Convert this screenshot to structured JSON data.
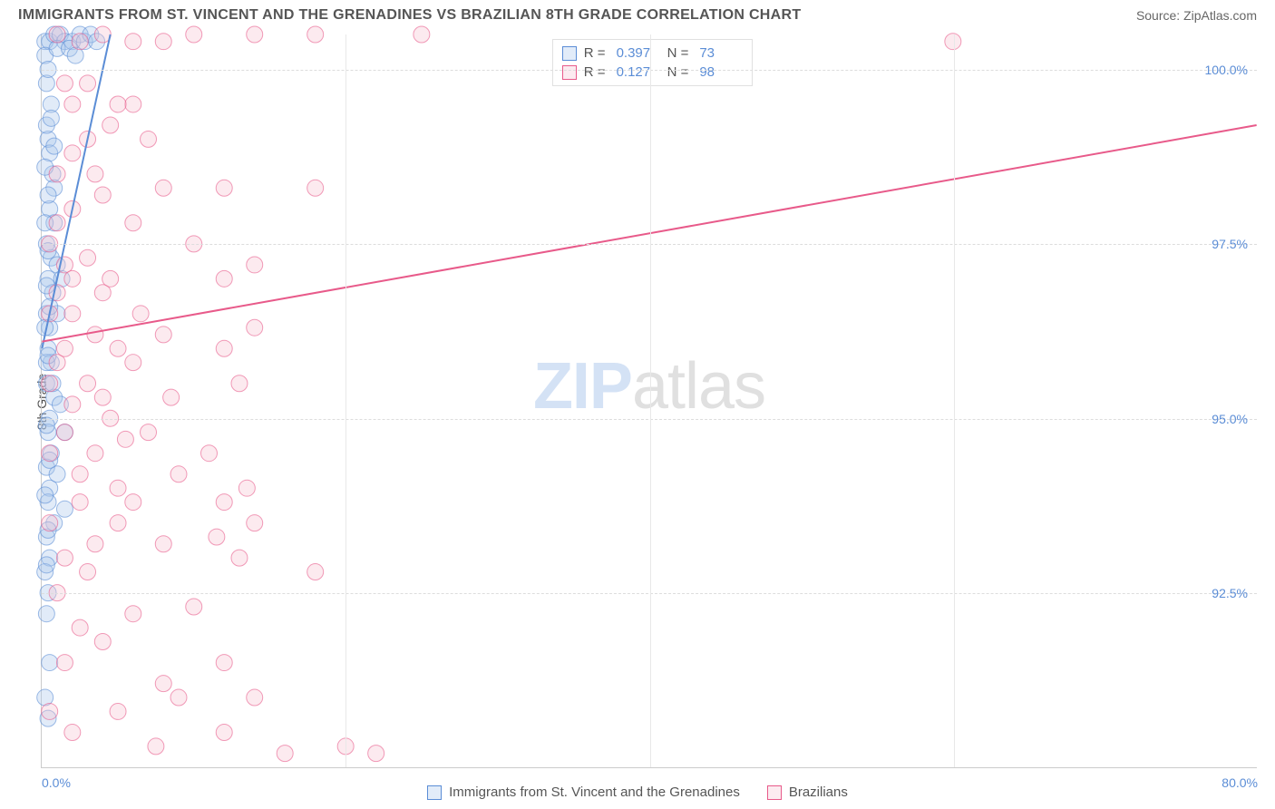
{
  "header": {
    "title": "IMMIGRANTS FROM ST. VINCENT AND THE GRENADINES VS BRAZILIAN 8TH GRADE CORRELATION CHART",
    "source_label": "Source:",
    "source_name": "ZipAtlas.com"
  },
  "chart": {
    "type": "scatter",
    "ylabel": "8th Grade",
    "xlim": [
      0,
      80
    ],
    "ylim": [
      90,
      100.5
    ],
    "xtick_labels": [
      "0.0%",
      "80.0%"
    ],
    "xtick_positions": [
      0,
      80
    ],
    "x_gridlines": [
      20,
      40,
      60
    ],
    "ytick_labels": [
      "92.5%",
      "95.0%",
      "97.5%",
      "100.0%"
    ],
    "ytick_positions": [
      92.5,
      95.0,
      97.5,
      100.0
    ],
    "background_color": "#ffffff",
    "grid_color": "#dddddd",
    "axis_color": "#cccccc",
    "tick_text_color": "#5b8dd6",
    "marker_radius": 9,
    "marker_opacity": 0.35,
    "line_width": 2,
    "series": [
      {
        "name": "Immigrants from St. Vincent and the Grenadines",
        "color_fill": "#a8c7ec",
        "color_stroke": "#5b8dd6",
        "R": "0.397",
        "N": "73",
        "trend": {
          "x1": 0,
          "y1": 96.0,
          "x2": 4.5,
          "y2": 100.5
        },
        "points": [
          [
            0.2,
            100.4
          ],
          [
            0.5,
            100.4
          ],
          [
            0.8,
            100.5
          ],
          [
            1.2,
            100.5
          ],
          [
            1.5,
            100.4
          ],
          [
            2.0,
            100.4
          ],
          [
            2.5,
            100.5
          ],
          [
            2.8,
            100.4
          ],
          [
            3.2,
            100.5
          ],
          [
            3.6,
            100.4
          ],
          [
            0.3,
            99.8
          ],
          [
            0.6,
            99.5
          ],
          [
            0.4,
            99.0
          ],
          [
            0.7,
            98.5
          ],
          [
            0.5,
            98.0
          ],
          [
            0.8,
            97.8
          ],
          [
            0.3,
            97.5
          ],
          [
            0.6,
            97.3
          ],
          [
            0.4,
            97.0
          ],
          [
            0.7,
            96.8
          ],
          [
            0.3,
            96.5
          ],
          [
            0.5,
            96.3
          ],
          [
            1.0,
            96.5
          ],
          [
            0.4,
            96.0
          ],
          [
            0.6,
            95.8
          ],
          [
            0.3,
            95.5
          ],
          [
            0.8,
            95.3
          ],
          [
            0.5,
            95.0
          ],
          [
            1.2,
            95.2
          ],
          [
            0.4,
            94.8
          ],
          [
            0.6,
            94.5
          ],
          [
            1.5,
            94.8
          ],
          [
            0.3,
            94.3
          ],
          [
            0.5,
            94.0
          ],
          [
            1.0,
            94.2
          ],
          [
            0.4,
            93.8
          ],
          [
            0.8,
            93.5
          ],
          [
            1.5,
            93.7
          ],
          [
            0.3,
            93.3
          ],
          [
            0.5,
            93.0
          ],
          [
            0.2,
            92.8
          ],
          [
            0.4,
            92.5
          ],
          [
            0.3,
            92.2
          ],
          [
            0.5,
            91.5
          ],
          [
            0.2,
            91.0
          ],
          [
            0.4,
            90.7
          ],
          [
            0.3,
            99.2
          ],
          [
            0.5,
            98.8
          ],
          [
            0.8,
            98.3
          ],
          [
            1.0,
            97.2
          ],
          [
            0.2,
            100.2
          ],
          [
            0.4,
            100.0
          ],
          [
            1.0,
            100.3
          ],
          [
            1.8,
            100.3
          ],
          [
            2.2,
            100.2
          ],
          [
            0.3,
            95.8
          ],
          [
            0.7,
            95.5
          ],
          [
            0.2,
            97.8
          ],
          [
            0.4,
            97.4
          ],
          [
            0.3,
            96.9
          ],
          [
            0.5,
            96.6
          ],
          [
            0.2,
            96.3
          ],
          [
            0.4,
            95.9
          ],
          [
            0.3,
            94.9
          ],
          [
            0.5,
            94.4
          ],
          [
            0.2,
            93.9
          ],
          [
            0.4,
            93.4
          ],
          [
            0.3,
            92.9
          ],
          [
            0.6,
            99.3
          ],
          [
            0.8,
            98.9
          ],
          [
            0.2,
            98.6
          ],
          [
            0.4,
            98.2
          ],
          [
            1.3,
            97.0
          ]
        ]
      },
      {
        "name": "Brazilians",
        "color_fill": "#f5c4d1",
        "color_stroke": "#e85a8a",
        "R": "0.127",
        "N": "98",
        "trend": {
          "x1": 0,
          "y1": 96.1,
          "x2": 80,
          "y2": 99.2
        },
        "points": [
          [
            1.0,
            100.5
          ],
          [
            2.5,
            100.4
          ],
          [
            4.0,
            100.5
          ],
          [
            6.0,
            100.4
          ],
          [
            8.0,
            100.4
          ],
          [
            10.0,
            100.5
          ],
          [
            14.0,
            100.5
          ],
          [
            18.0,
            100.5
          ],
          [
            25.0,
            100.5
          ],
          [
            60.0,
            100.4
          ],
          [
            1.5,
            99.8
          ],
          [
            2.0,
            99.5
          ],
          [
            3.0,
            99.0
          ],
          [
            4.5,
            99.2
          ],
          [
            6.0,
            99.5
          ],
          [
            1.0,
            98.5
          ],
          [
            2.0,
            98.0
          ],
          [
            4.0,
            98.2
          ],
          [
            8.0,
            98.3
          ],
          [
            12.0,
            98.3
          ],
          [
            18.0,
            98.3
          ],
          [
            0.5,
            97.5
          ],
          [
            1.0,
            97.8
          ],
          [
            1.5,
            97.2
          ],
          [
            2.0,
            97.0
          ],
          [
            3.0,
            97.3
          ],
          [
            4.5,
            97.0
          ],
          [
            10.0,
            97.5
          ],
          [
            12.0,
            97.0
          ],
          [
            14.0,
            97.2
          ],
          [
            0.5,
            96.5
          ],
          [
            1.0,
            96.8
          ],
          [
            2.0,
            96.5
          ],
          [
            3.5,
            96.2
          ],
          [
            5.0,
            96.0
          ],
          [
            6.5,
            96.5
          ],
          [
            8.0,
            96.2
          ],
          [
            12.0,
            96.0
          ],
          [
            14.0,
            96.3
          ],
          [
            0.5,
            95.5
          ],
          [
            1.0,
            95.8
          ],
          [
            2.0,
            95.2
          ],
          [
            3.0,
            95.5
          ],
          [
            4.5,
            95.0
          ],
          [
            6.0,
            95.8
          ],
          [
            7.0,
            94.8
          ],
          [
            8.5,
            95.3
          ],
          [
            11.0,
            94.5
          ],
          [
            13.0,
            95.5
          ],
          [
            13.5,
            94.0
          ],
          [
            0.5,
            94.5
          ],
          [
            1.5,
            94.8
          ],
          [
            2.5,
            94.2
          ],
          [
            3.5,
            94.5
          ],
          [
            5.0,
            94.0
          ],
          [
            5.5,
            94.7
          ],
          [
            9.0,
            94.2
          ],
          [
            12.0,
            93.8
          ],
          [
            0.5,
            93.5
          ],
          [
            1.5,
            93.0
          ],
          [
            2.5,
            93.8
          ],
          [
            3.5,
            93.2
          ],
          [
            5.0,
            93.5
          ],
          [
            8.0,
            93.2
          ],
          [
            11.5,
            93.3
          ],
          [
            13.0,
            93.0
          ],
          [
            14.0,
            93.5
          ],
          [
            1.0,
            92.5
          ],
          [
            3.0,
            92.8
          ],
          [
            6.0,
            92.2
          ],
          [
            10.0,
            92.3
          ],
          [
            18.0,
            92.8
          ],
          [
            1.5,
            91.5
          ],
          [
            4.0,
            91.8
          ],
          [
            8.0,
            91.2
          ],
          [
            12.0,
            91.5
          ],
          [
            14.0,
            91.0
          ],
          [
            0.5,
            90.8
          ],
          [
            2.0,
            90.5
          ],
          [
            5.0,
            90.8
          ],
          [
            7.5,
            90.3
          ],
          [
            9.0,
            91.0
          ],
          [
            12.0,
            90.5
          ],
          [
            16.0,
            90.2
          ],
          [
            20.0,
            90.3
          ],
          [
            22.0,
            90.2
          ],
          [
            3.0,
            99.8
          ],
          [
            5.0,
            99.5
          ],
          [
            7.0,
            99.0
          ],
          [
            4.0,
            96.8
          ],
          [
            6.0,
            97.8
          ],
          [
            2.0,
            98.8
          ],
          [
            3.5,
            98.5
          ],
          [
            1.5,
            96.0
          ],
          [
            4.0,
            95.3
          ],
          [
            2.5,
            92.0
          ],
          [
            6.0,
            93.8
          ]
        ]
      }
    ],
    "legend_box": {
      "r_label": "R =",
      "n_label": "N ="
    },
    "watermark": {
      "part1": "ZIP",
      "part2": "atlas"
    }
  },
  "bottom_legend": {
    "items": [
      "Immigrants from St. Vincent and the Grenadines",
      "Brazilians"
    ]
  }
}
